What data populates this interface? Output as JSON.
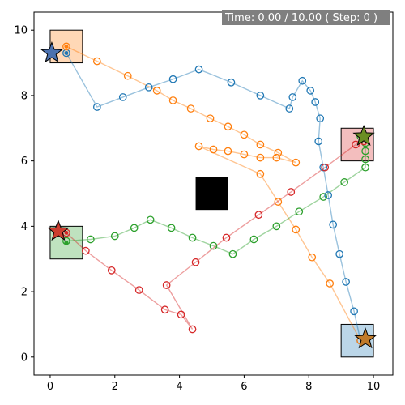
{
  "status": {
    "text": "Time: 0.00 / 10.00 ( Step: 0  )",
    "background": "#7f7f7f"
  },
  "chart_data": {
    "type": "scatter",
    "title": "",
    "xlabel": "",
    "ylabel": "",
    "xlim": [
      -0.5,
      10.6
    ],
    "ylim": [
      -0.55,
      10.55
    ],
    "xticks": [
      0,
      2,
      4,
      6,
      8,
      10
    ],
    "yticks": [
      0,
      2,
      4,
      6,
      8,
      10
    ],
    "grid": false,
    "obstacle": {
      "x": [
        4.5,
        5.5
      ],
      "y": [
        4.5,
        5.5
      ],
      "color": "#000000"
    },
    "series": [
      {
        "color": "#1f77b4",
        "start": [
          0.5,
          9.3
        ],
        "goal": {
          "x": [
            9.0,
            10.0
          ],
          "y": [
            0.0,
            1.0
          ]
        },
        "points": [
          [
            9.6,
            0.5
          ],
          [
            9.4,
            1.4
          ],
          [
            9.15,
            2.3
          ],
          [
            8.95,
            3.15
          ],
          [
            8.75,
            4.05
          ],
          [
            8.6,
            4.95
          ],
          [
            8.45,
            5.8
          ],
          [
            8.3,
            6.6
          ],
          [
            8.35,
            7.3
          ],
          [
            8.2,
            7.8
          ],
          [
            8.05,
            8.15
          ],
          [
            7.8,
            8.45
          ],
          [
            7.5,
            7.95
          ],
          [
            7.4,
            7.6
          ],
          [
            6.5,
            8.0
          ],
          [
            5.6,
            8.4
          ],
          [
            4.6,
            8.8
          ],
          [
            3.8,
            8.5
          ],
          [
            3.05,
            8.25
          ],
          [
            2.25,
            7.95
          ],
          [
            1.45,
            7.65
          ],
          [
            0.5,
            9.3
          ]
        ]
      },
      {
        "color": "#ff7f0e",
        "start": [
          0.5,
          9.5
        ],
        "goal": {
          "x": [
            0.0,
            1.0
          ],
          "y": [
            9.0,
            10.0
          ]
        },
        "points": [
          [
            0.5,
            9.5
          ],
          [
            1.45,
            9.05
          ],
          [
            2.4,
            8.6
          ],
          [
            3.3,
            8.15
          ],
          [
            3.8,
            7.85
          ],
          [
            4.35,
            7.6
          ],
          [
            4.95,
            7.3
          ],
          [
            5.5,
            7.05
          ],
          [
            6.0,
            6.8
          ],
          [
            6.5,
            6.5
          ],
          [
            7.05,
            6.25
          ],
          [
            7.6,
            5.95
          ],
          [
            7.0,
            6.1
          ],
          [
            6.5,
            6.1
          ],
          [
            6.0,
            6.2
          ],
          [
            5.5,
            6.3
          ],
          [
            5.05,
            6.35
          ],
          [
            4.6,
            6.45
          ],
          [
            6.5,
            5.6
          ],
          [
            7.05,
            4.75
          ],
          [
            7.6,
            3.9
          ],
          [
            8.1,
            3.05
          ],
          [
            8.65,
            2.25
          ],
          [
            9.6,
            0.5
          ]
        ]
      },
      {
        "color": "#2ca02c",
        "start": [
          0.5,
          3.5
        ],
        "goal": {
          "x": [
            0.0,
            1.0
          ],
          "y": [
            3.0,
            4.0
          ]
        },
        "points": [
          [
            0.5,
            3.55
          ],
          [
            1.25,
            3.6
          ],
          [
            2.0,
            3.7
          ],
          [
            2.6,
            3.95
          ],
          [
            3.1,
            4.2
          ],
          [
            3.75,
            3.95
          ],
          [
            4.4,
            3.65
          ],
          [
            5.05,
            3.4
          ],
          [
            5.65,
            3.15
          ],
          [
            6.3,
            3.6
          ],
          [
            7.0,
            4.0
          ],
          [
            7.7,
            4.45
          ],
          [
            8.45,
            4.9
          ],
          [
            9.1,
            5.35
          ],
          [
            9.75,
            5.8
          ],
          [
            9.75,
            6.05
          ],
          [
            9.75,
            6.3
          ],
          [
            9.75,
            6.55
          ],
          [
            9.6,
            6.75
          ]
        ]
      },
      {
        "color": "#d62728",
        "start": [
          0.5,
          3.8
        ],
        "goal": {
          "x": [
            9.0,
            10.0
          ],
          "y": [
            6.0,
            7.0
          ]
        },
        "points": [
          [
            0.5,
            3.8
          ],
          [
            1.1,
            3.25
          ],
          [
            1.9,
            2.65
          ],
          [
            2.75,
            2.05
          ],
          [
            3.55,
            1.45
          ],
          [
            4.05,
            1.3
          ],
          [
            4.4,
            0.85
          ],
          [
            3.6,
            2.2
          ],
          [
            4.5,
            2.9
          ],
          [
            5.45,
            3.65
          ],
          [
            6.45,
            4.35
          ],
          [
            7.45,
            5.05
          ],
          [
            8.5,
            5.8
          ],
          [
            9.45,
            6.5
          ],
          [
            9.7,
            6.6
          ]
        ]
      }
    ],
    "markers": [
      {
        "name": "blue-agent-star",
        "x": 0.05,
        "y": 9.3,
        "color": "#4c72b0"
      },
      {
        "name": "orange-agent-star",
        "x": 9.75,
        "y": 0.55,
        "color": "#c07a2a"
      },
      {
        "name": "green-agent-star",
        "x": 9.7,
        "y": 6.75,
        "color": "#6b8e23"
      },
      {
        "name": "red-agent-star",
        "x": 0.25,
        "y": 3.85,
        "color": "#cc3d2f"
      }
    ],
    "goals": [
      {
        "x": [
          0.0,
          1.0
        ],
        "y": [
          9.0,
          10.0
        ],
        "color": "#ff7f0e"
      },
      {
        "x": [
          0.0,
          1.0
        ],
        "y": [
          3.0,
          4.0
        ],
        "color": "#2ca02c"
      },
      {
        "x": [
          9.0,
          10.0
        ],
        "y": [
          6.0,
          7.0
        ],
        "color": "#d62728"
      },
      {
        "x": [
          9.0,
          10.0
        ],
        "y": [
          0.0,
          1.0
        ],
        "color": "#1f77b4"
      }
    ]
  }
}
